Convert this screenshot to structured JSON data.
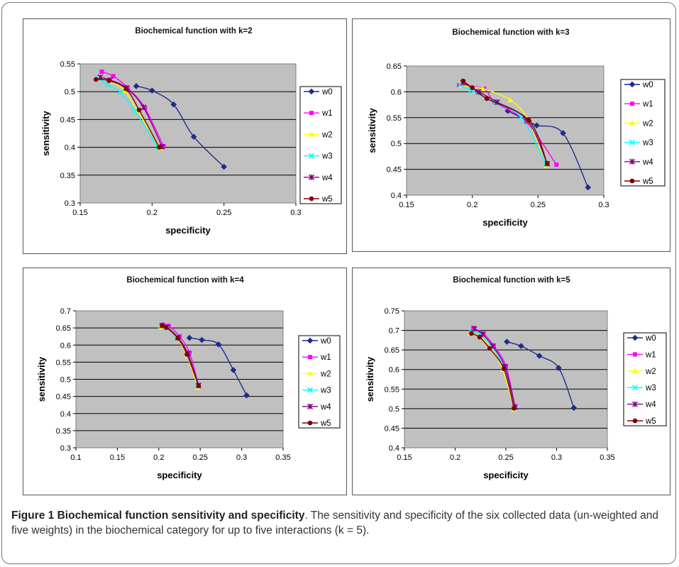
{
  "caption": {
    "label": "Figure 1",
    "title": "Biochemical function sensitivity and specificity",
    "text": ". The sensitivity and specificity of the six collected data (un-weighted and five weights) in the biochemical category for up to five interactions (k = 5)."
  },
  "series_style": [
    {
      "name": "w0",
      "color": "#1c2c8c",
      "marker": "diamond"
    },
    {
      "name": "w1",
      "color": "#ff00ff",
      "marker": "square"
    },
    {
      "name": "w2",
      "color": "#ffff00",
      "marker": "triangle"
    },
    {
      "name": "w3",
      "color": "#00ffff",
      "marker": "x"
    },
    {
      "name": "w4",
      "color": "#800080",
      "marker": "star"
    },
    {
      "name": "w5",
      "color": "#800000",
      "marker": "circle"
    }
  ],
  "chart_data": [
    {
      "type": "line",
      "title": "Biochemical function with k=2",
      "xlabel": "specificity",
      "ylabel": "sensitivity",
      "xlim": [
        0.15,
        0.3
      ],
      "ylim": [
        0.3,
        0.55
      ],
      "xticks": [
        "0.15",
        "0.2",
        "0.25",
        "0.3"
      ],
      "yticks": [
        "0.3",
        "0.35",
        "0.4",
        "0.45",
        "0.5",
        "0.55"
      ],
      "grid": true,
      "legend": "right",
      "series": [
        {
          "name": "w0",
          "x": [
            0.189,
            0.2,
            0.215,
            0.229,
            0.25
          ],
          "y": [
            0.51,
            0.502,
            0.477,
            0.419,
            0.365
          ]
        },
        {
          "name": "w1",
          "x": [
            0.165,
            0.173,
            0.183,
            0.195,
            0.208
          ],
          "y": [
            0.536,
            0.528,
            0.507,
            0.471,
            0.402
          ]
        },
        {
          "name": "w2",
          "x": [
            0.164,
            0.172,
            0.181,
            0.19,
            0.206
          ],
          "y": [
            0.527,
            0.518,
            0.502,
            0.465,
            0.398
          ]
        },
        {
          "name": "w3",
          "x": [
            0.163,
            0.169,
            0.178,
            0.188,
            0.204
          ],
          "y": [
            0.524,
            0.513,
            0.499,
            0.465,
            0.4
          ]
        },
        {
          "name": "w4",
          "x": [
            0.164,
            0.171,
            0.182,
            0.194,
            0.207
          ],
          "y": [
            0.526,
            0.521,
            0.507,
            0.472,
            0.401
          ]
        },
        {
          "name": "w5",
          "x": [
            0.161,
            0.17,
            0.182,
            0.191,
            0.205
          ],
          "y": [
            0.522,
            0.52,
            0.505,
            0.467,
            0.4
          ]
        }
      ]
    },
    {
      "type": "line",
      "title": "Biochemical function with k=3",
      "xlabel": "specificity",
      "ylabel": "sensitivity",
      "xlim": [
        0.15,
        0.3
      ],
      "ylim": [
        0.4,
        0.65
      ],
      "xticks": [
        "0.15",
        "0.2",
        "0.25",
        "0.3"
      ],
      "yticks": [
        "0.4",
        "0.45",
        "0.5",
        "0.55",
        "0.6",
        "0.65"
      ],
      "grid": true,
      "legend": "right",
      "series": [
        {
          "name": "w0",
          "x": [
            0.227,
            0.243,
            0.249,
            0.269,
            0.288
          ],
          "y": [
            0.563,
            0.543,
            0.535,
            0.52,
            0.415
          ]
        },
        {
          "name": "w1",
          "x": [
            0.19,
            0.209,
            0.217,
            0.241,
            0.264
          ],
          "y": [
            0.613,
            0.606,
            0.58,
            0.542,
            0.459
          ]
        },
        {
          "name": "w2",
          "x": [
            0.191,
            0.208,
            0.229,
            0.243,
            0.256
          ],
          "y": [
            0.612,
            0.606,
            0.584,
            0.544,
            0.457
          ]
        },
        {
          "name": "w3",
          "x": [
            0.191,
            0.199,
            0.217,
            0.237,
            0.256
          ],
          "y": [
            0.613,
            0.603,
            0.579,
            0.551,
            0.46
          ]
        },
        {
          "name": "w4",
          "x": [
            0.193,
            0.205,
            0.219,
            0.242,
            0.257
          ],
          "y": [
            0.618,
            0.6,
            0.58,
            0.545,
            0.461
          ]
        },
        {
          "name": "w5",
          "x": [
            0.193,
            0.2,
            0.211,
            0.243,
            0.257
          ],
          "y": [
            0.621,
            0.608,
            0.587,
            0.545,
            0.461
          ]
        }
      ]
    },
    {
      "type": "line",
      "title": "Biochemical function with k=4",
      "xlabel": "specificity",
      "ylabel": "sensitivity",
      "xlim": [
        0.1,
        0.35
      ],
      "ylim": [
        0.3,
        0.7
      ],
      "xticks": [
        "0.1",
        "0.15",
        "0.2",
        "0.25",
        "0.3",
        "0.35"
      ],
      "yticks": [
        "0.3",
        "0.35",
        "0.4",
        "0.45",
        "0.5",
        "0.55",
        "0.6",
        "0.65",
        "0.7"
      ],
      "grid": true,
      "legend": "right",
      "series": [
        {
          "name": "w0",
          "x": [
            0.237,
            0.252,
            0.272,
            0.29,
            0.306
          ],
          "y": [
            0.621,
            0.615,
            0.602,
            0.527,
            0.453
          ]
        },
        {
          "name": "w1",
          "x": [
            0.205,
            0.212,
            0.225,
            0.237,
            0.248
          ],
          "y": [
            0.659,
            0.656,
            0.625,
            0.578,
            0.483
          ]
        },
        {
          "name": "w2",
          "x": [
            0.202,
            0.21,
            0.222,
            0.234,
            0.247
          ],
          "y": [
            0.652,
            0.652,
            0.62,
            0.57,
            0.476
          ]
        },
        {
          "name": "w3",
          "x": [
            0.203,
            0.21,
            0.222,
            0.235,
            0.247
          ],
          "y": [
            0.655,
            0.651,
            0.62,
            0.574,
            0.48
          ]
        },
        {
          "name": "w4",
          "x": [
            0.204,
            0.21,
            0.223,
            0.235,
            0.248
          ],
          "y": [
            0.657,
            0.652,
            0.622,
            0.575,
            0.482
          ]
        },
        {
          "name": "w5",
          "x": [
            0.204,
            0.209,
            0.223,
            0.234,
            0.248
          ],
          "y": [
            0.657,
            0.652,
            0.62,
            0.573,
            0.481
          ]
        }
      ]
    },
    {
      "type": "line",
      "title": "Biochemical function with k=5",
      "xlabel": "specificity",
      "ylabel": "sensitivity",
      "xlim": [
        0.15,
        0.35
      ],
      "ylim": [
        0.4,
        0.75
      ],
      "xticks": [
        "0.15",
        "0.2",
        "0.25",
        "0.3",
        "0.35"
      ],
      "yticks": [
        "0.4",
        "0.45",
        "0.5",
        "0.55",
        "0.6",
        "0.65",
        "0.7",
        "0.75"
      ],
      "grid": true,
      "legend": "right",
      "series": [
        {
          "name": "w0",
          "x": [
            0.251,
            0.265,
            0.283,
            0.302,
            0.317
          ],
          "y": [
            0.671,
            0.66,
            0.635,
            0.604,
            0.502
          ]
        },
        {
          "name": "w1",
          "x": [
            0.218,
            0.228,
            0.238,
            0.25,
            0.259
          ],
          "y": [
            0.706,
            0.692,
            0.661,
            0.609,
            0.506
          ]
        },
        {
          "name": "w2",
          "x": [
            0.215,
            0.224,
            0.236,
            0.247,
            0.258
          ],
          "y": [
            0.692,
            0.686,
            0.655,
            0.6,
            0.498
          ]
        },
        {
          "name": "w3",
          "x": [
            0.216,
            0.225,
            0.236,
            0.248,
            0.258
          ],
          "y": [
            0.697,
            0.688,
            0.658,
            0.604,
            0.502
          ]
        },
        {
          "name": "w4",
          "x": [
            0.219,
            0.227,
            0.237,
            0.249,
            0.259
          ],
          "y": [
            0.704,
            0.69,
            0.66,
            0.607,
            0.504
          ]
        },
        {
          "name": "w5",
          "x": [
            0.216,
            0.224,
            0.234,
            0.248,
            0.258
          ],
          "y": [
            0.692,
            0.683,
            0.654,
            0.602,
            0.501
          ]
        }
      ]
    }
  ]
}
